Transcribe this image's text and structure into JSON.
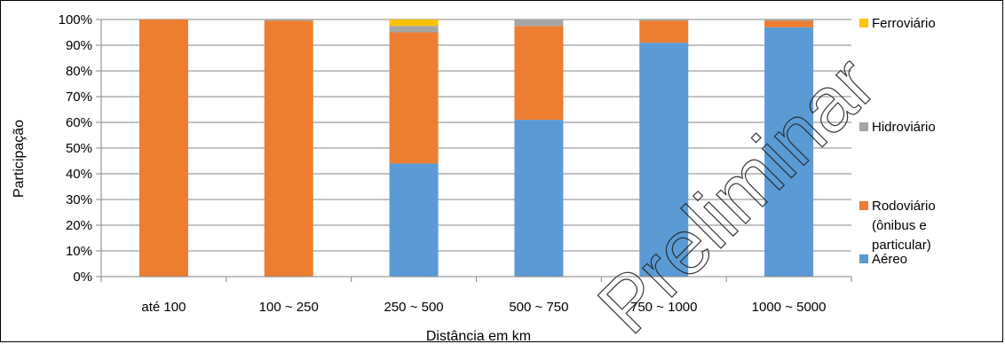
{
  "chart_data": {
    "type": "bar",
    "stacked": true,
    "title": "",
    "xlabel": "Distância em km",
    "ylabel": "Participação",
    "ylim": [
      0,
      100
    ],
    "y_tick_labels": [
      "0%",
      "10%",
      "20%",
      "30%",
      "40%",
      "50%",
      "60%",
      "70%",
      "80%",
      "90%",
      "100%"
    ],
    "categories": [
      "até 100",
      "100 ~ 250",
      "250 ~ 500",
      "500 ~ 750",
      "750 ~ 1000",
      "1000 ~ 5000"
    ],
    "series": [
      {
        "name": "Aéreo",
        "color": "#5B9BD5",
        "values": [
          0,
          0,
          44,
          61,
          91,
          97
        ]
      },
      {
        "name": "Rodoviário (ônibus e particular)",
        "color": "#ED7D31",
        "values": [
          100,
          99.5,
          51,
          36.5,
          8.5,
          2.5
        ]
      },
      {
        "name": "Hidroviário",
        "color": "#A5A5A5",
        "values": [
          0,
          0.5,
          2.5,
          2.5,
          0.5,
          0.5
        ]
      },
      {
        "name": "Ferroviário",
        "color": "#FFC000",
        "values": [
          0,
          0,
          2.5,
          0,
          0,
          0
        ]
      }
    ],
    "legend": {
      "position": "right",
      "order": [
        "Ferroviário",
        "Hidroviário",
        "Rodoviário (ônibus e particular)",
        "Aéreo"
      ],
      "label_lines": {
        "Ferroviário": [
          "Ferroviário"
        ],
        "Hidroviário": [
          "Hidroviário"
        ],
        "Rodoviário (ônibus e particular)": [
          "Rodoviário",
          "(ônibus e",
          "particular)"
        ],
        "Aéreo": [
          "Aéreo"
        ]
      }
    },
    "grid": true,
    "watermark": "Preliminar"
  }
}
